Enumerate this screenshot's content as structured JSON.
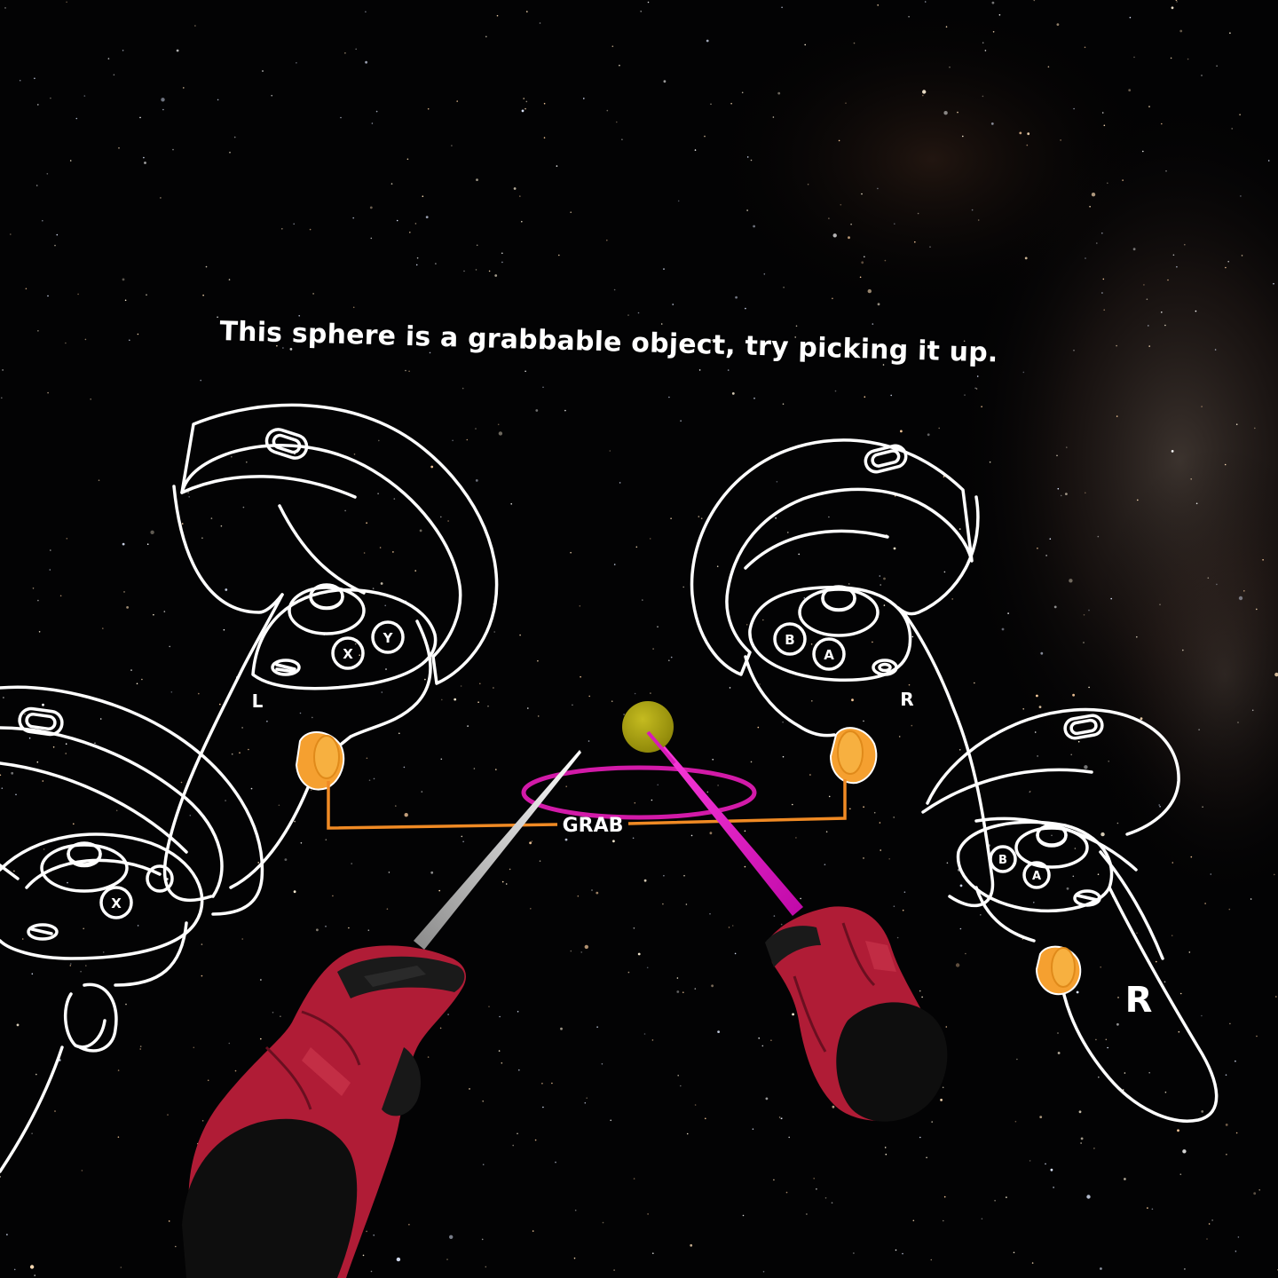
{
  "instruction": {
    "text": "This sphere is a grabbable object, try picking it up."
  },
  "grab_label": "GRAB",
  "controllers": {
    "left": {
      "label": "L",
      "buttons": [
        "X",
        "Y"
      ]
    },
    "right": {
      "label": "R",
      "buttons": [
        "B",
        "A"
      ]
    },
    "left_near": {
      "buttons": [
        "X"
      ]
    },
    "right_near": {
      "label": "R",
      "buttons": [
        "B",
        "A"
      ]
    }
  },
  "colors": {
    "background": "#030304",
    "outline": "#ffffff",
    "grip_highlight": "#f5a030",
    "grab_line": "#f08a24",
    "sphere": "#a8a010",
    "right_ray": "#cc10b0",
    "left_ray": "#b8b8b8",
    "ring": "#d21aa8",
    "glove_red": "#b8203a",
    "glove_black": "#111111"
  },
  "icons": [
    "menu-icon",
    "oculus-home-icon",
    "thumbstick-icon",
    "sphere-icon"
  ]
}
